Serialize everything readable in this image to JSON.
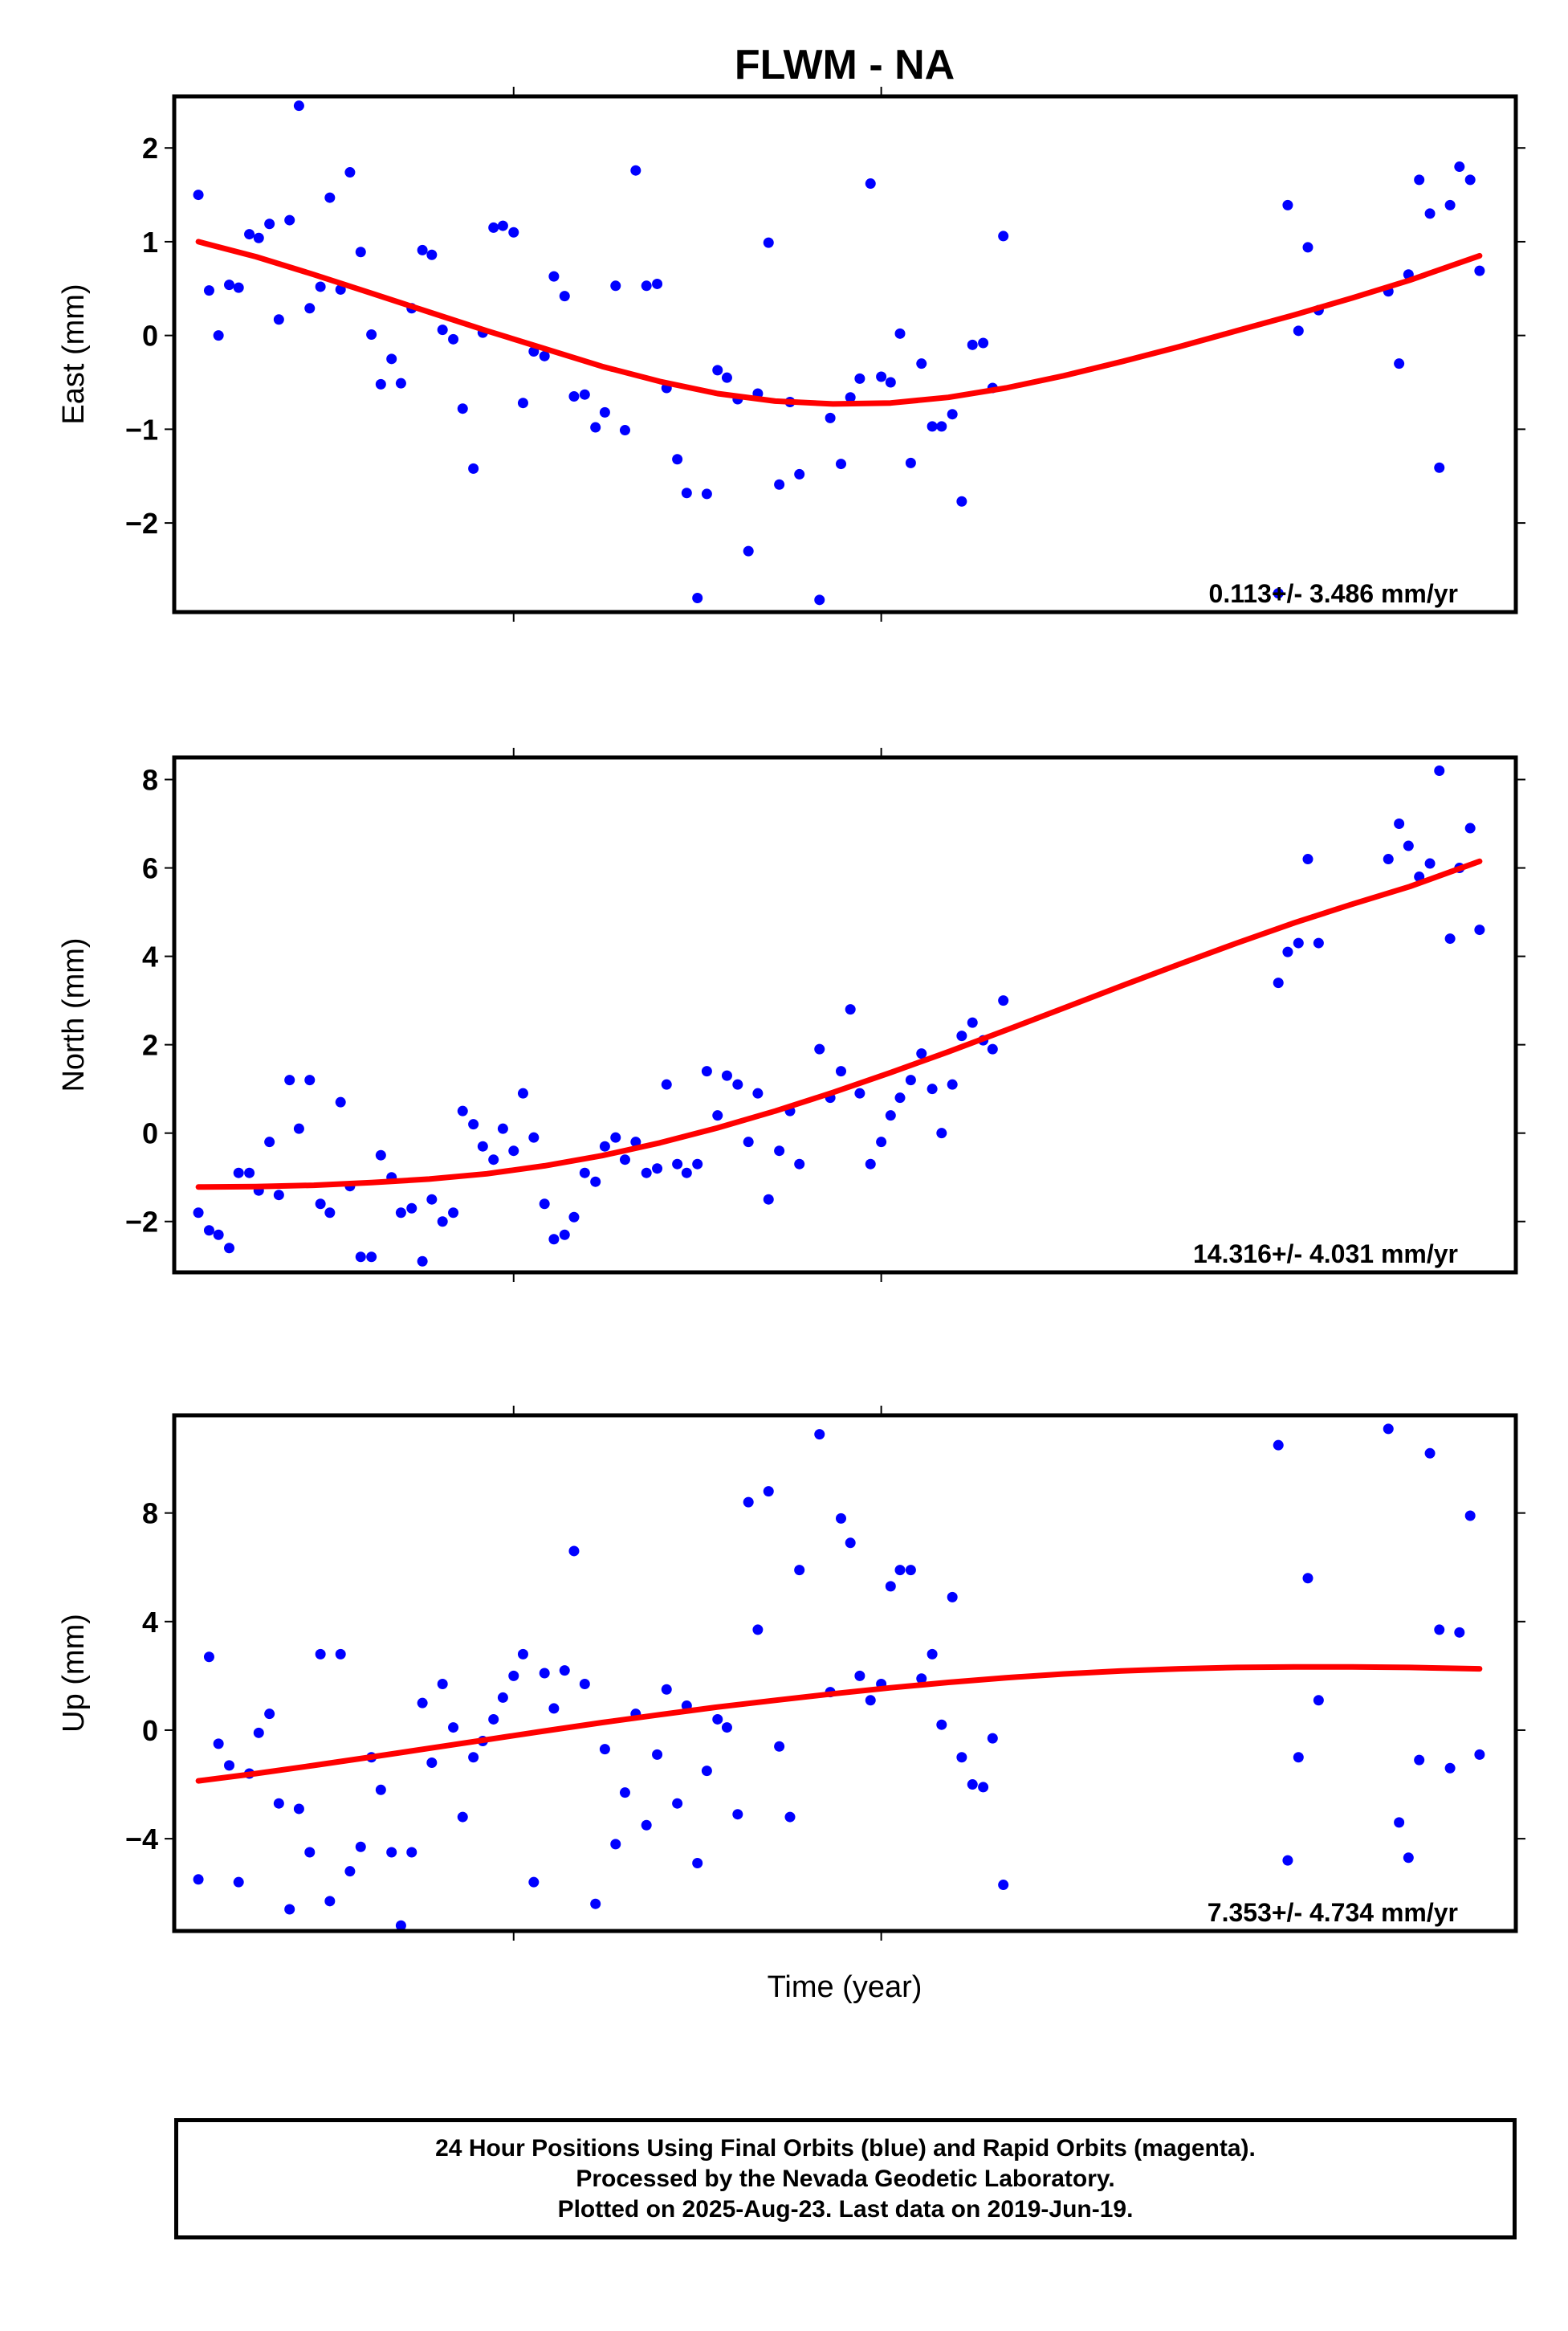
{
  "title": "FLWM - NA",
  "xlabel": "Time (year)",
  "colors": {
    "points": "#0000ff",
    "fit": "#ff0000",
    "frame": "#000000"
  },
  "footer": {
    "line1": "24 Hour Positions Using Final Orbits (blue) and Rapid Orbits (magenta).",
    "line2": "Processed by the Nevada Geodetic Laboratory.",
    "line3": "Plotted on 2025-Aug-23. Last data on 2019-Jun-19."
  },
  "chart_data": [
    {
      "type": "scatter",
      "ylabel": "East (mm)",
      "rate": "0.113+/- 3.486 mm/yr",
      "ylim": [
        -2.95,
        2.55
      ],
      "yticks": [
        2,
        1,
        0,
        -1,
        -2
      ],
      "ytick_labels": [
        "2",
        "1",
        "0",
        "−1",
        "−2"
      ],
      "xlim": [
        0,
        1
      ],
      "points": [
        [
          0.018,
          1.5
        ],
        [
          0.026,
          0.48
        ],
        [
          0.033,
          0.0
        ],
        [
          0.041,
          0.54
        ],
        [
          0.048,
          0.51
        ],
        [
          0.056,
          1.08
        ],
        [
          0.063,
          1.04
        ],
        [
          0.071,
          1.19
        ],
        [
          0.078,
          0.17
        ],
        [
          0.086,
          1.23
        ],
        [
          0.093,
          2.45
        ],
        [
          0.101,
          0.29
        ],
        [
          0.109,
          0.52
        ],
        [
          0.116,
          1.47
        ],
        [
          0.124,
          0.49
        ],
        [
          0.131,
          1.74
        ],
        [
          0.139,
          0.89
        ],
        [
          0.147,
          0.01
        ],
        [
          0.154,
          -0.52
        ],
        [
          0.162,
          -0.25
        ],
        [
          0.169,
          -0.51
        ],
        [
          0.177,
          0.29
        ],
        [
          0.185,
          0.91
        ],
        [
          0.192,
          0.86
        ],
        [
          0.2,
          0.06
        ],
        [
          0.208,
          -0.04
        ],
        [
          0.215,
          -0.78
        ],
        [
          0.223,
          -1.42
        ],
        [
          0.23,
          0.03
        ],
        [
          0.238,
          1.15
        ],
        [
          0.245,
          1.17
        ],
        [
          0.253,
          1.1
        ],
        [
          0.26,
          -0.72
        ],
        [
          0.268,
          -0.17
        ],
        [
          0.276,
          -0.22
        ],
        [
          0.283,
          0.63
        ],
        [
          0.291,
          0.42
        ],
        [
          0.298,
          -0.65
        ],
        [
          0.306,
          -0.63
        ],
        [
          0.314,
          -0.98
        ],
        [
          0.321,
          -0.82
        ],
        [
          0.329,
          0.53
        ],
        [
          0.336,
          -1.01
        ],
        [
          0.344,
          1.76
        ],
        [
          0.352,
          0.53
        ],
        [
          0.36,
          0.55
        ],
        [
          0.367,
          -0.56
        ],
        [
          0.375,
          -1.32
        ],
        [
          0.382,
          -1.68
        ],
        [
          0.39,
          -2.8
        ],
        [
          0.397,
          -1.69
        ],
        [
          0.405,
          -0.37
        ],
        [
          0.412,
          -0.45
        ],
        [
          0.42,
          -0.68
        ],
        [
          0.428,
          -2.3
        ],
        [
          0.435,
          -0.62
        ],
        [
          0.443,
          0.99
        ],
        [
          0.451,
          -1.59
        ],
        [
          0.459,
          -0.71
        ],
        [
          0.466,
          -1.48
        ],
        [
          0.481,
          -2.82
        ],
        [
          0.489,
          -0.88
        ],
        [
          0.497,
          -1.37
        ],
        [
          0.504,
          -0.66
        ],
        [
          0.511,
          -0.46
        ],
        [
          0.519,
          1.62
        ],
        [
          0.527,
          -0.44
        ],
        [
          0.534,
          -0.5
        ],
        [
          0.541,
          0.02
        ],
        [
          0.549,
          -1.36
        ],
        [
          0.557,
          -0.3
        ],
        [
          0.565,
          -0.97
        ],
        [
          0.572,
          -0.97
        ],
        [
          0.58,
          -0.84
        ],
        [
          0.587,
          -1.77
        ],
        [
          0.595,
          -0.1
        ],
        [
          0.603,
          -0.08
        ],
        [
          0.61,
          -0.56
        ],
        [
          0.618,
          1.06
        ],
        [
          0.823,
          -2.75
        ],
        [
          0.83,
          1.39
        ],
        [
          0.838,
          0.05
        ],
        [
          0.845,
          0.94
        ],
        [
          0.853,
          0.27
        ],
        [
          0.905,
          0.47
        ],
        [
          0.913,
          -0.3
        ],
        [
          0.92,
          0.65
        ],
        [
          0.928,
          1.66
        ],
        [
          0.936,
          1.3
        ],
        [
          0.943,
          -1.41
        ],
        [
          0.951,
          1.39
        ],
        [
          0.958,
          1.8
        ],
        [
          0.966,
          1.66
        ],
        [
          0.973,
          0.69
        ]
      ],
      "fit_x": [
        0.018,
        0.061,
        0.104,
        0.147,
        0.19,
        0.233,
        0.276,
        0.319,
        0.362,
        0.405,
        0.448,
        0.491,
        0.534,
        0.577,
        0.62,
        0.663,
        0.706,
        0.749,
        0.792,
        0.835,
        0.878,
        0.921,
        0.973
      ],
      "fit_y": [
        1.0,
        0.84,
        0.65,
        0.45,
        0.25,
        0.05,
        -0.14,
        -0.33,
        -0.49,
        -0.62,
        -0.7,
        -0.73,
        -0.72,
        -0.66,
        -0.56,
        -0.43,
        -0.28,
        -0.12,
        0.05,
        0.22,
        0.4,
        0.59,
        0.85
      ]
    },
    {
      "type": "scatter",
      "ylabel": "North (mm)",
      "rate": "14.316+/- 4.031 mm/yr",
      "ylim": [
        -3.15,
        8.5
      ],
      "yticks": [
        8,
        6,
        4,
        2,
        0,
        -2
      ],
      "ytick_labels": [
        "8",
        "6",
        "4",
        "2",
        "0",
        "−2"
      ],
      "xlim": [
        0,
        1
      ],
      "points": [
        [
          0.018,
          -1.8
        ],
        [
          0.026,
          -2.2
        ],
        [
          0.033,
          -2.3
        ],
        [
          0.041,
          -2.6
        ],
        [
          0.048,
          -0.9
        ],
        [
          0.056,
          -0.9
        ],
        [
          0.063,
          -1.3
        ],
        [
          0.071,
          -0.2
        ],
        [
          0.078,
          -1.4
        ],
        [
          0.086,
          1.2
        ],
        [
          0.093,
          0.1
        ],
        [
          0.101,
          1.2
        ],
        [
          0.109,
          -1.6
        ],
        [
          0.116,
          -1.8
        ],
        [
          0.124,
          0.7
        ],
        [
          0.131,
          -1.2
        ],
        [
          0.139,
          -2.8
        ],
        [
          0.147,
          -2.8
        ],
        [
          0.154,
          -0.5
        ],
        [
          0.162,
          -1.0
        ],
        [
          0.169,
          -1.8
        ],
        [
          0.177,
          -1.7
        ],
        [
          0.185,
          -2.9
        ],
        [
          0.192,
          -1.5
        ],
        [
          0.2,
          -2.0
        ],
        [
          0.208,
          -1.8
        ],
        [
          0.215,
          0.5
        ],
        [
          0.223,
          0.2
        ],
        [
          0.23,
          -0.3
        ],
        [
          0.238,
          -0.6
        ],
        [
          0.245,
          0.1
        ],
        [
          0.253,
          -0.4
        ],
        [
          0.26,
          0.9
        ],
        [
          0.268,
          -0.1
        ],
        [
          0.276,
          -1.6
        ],
        [
          0.283,
          -2.4
        ],
        [
          0.291,
          -2.3
        ],
        [
          0.298,
          -1.9
        ],
        [
          0.306,
          -0.9
        ],
        [
          0.314,
          -1.1
        ],
        [
          0.321,
          -0.3
        ],
        [
          0.329,
          -0.1
        ],
        [
          0.336,
          -0.6
        ],
        [
          0.344,
          -0.2
        ],
        [
          0.352,
          -0.9
        ],
        [
          0.36,
          -0.8
        ],
        [
          0.367,
          1.1
        ],
        [
          0.375,
          -0.7
        ],
        [
          0.382,
          -0.9
        ],
        [
          0.39,
          -0.7
        ],
        [
          0.397,
          1.4
        ],
        [
          0.405,
          0.4
        ],
        [
          0.412,
          1.3
        ],
        [
          0.42,
          1.1
        ],
        [
          0.428,
          -0.2
        ],
        [
          0.435,
          0.9
        ],
        [
          0.443,
          -1.5
        ],
        [
          0.451,
          -0.4
        ],
        [
          0.459,
          0.5
        ],
        [
          0.466,
          -0.7
        ],
        [
          0.481,
          1.9
        ],
        [
          0.489,
          0.8
        ],
        [
          0.497,
          1.4
        ],
        [
          0.504,
          2.8
        ],
        [
          0.511,
          0.9
        ],
        [
          0.519,
          -0.7
        ],
        [
          0.527,
          -0.2
        ],
        [
          0.534,
          0.4
        ],
        [
          0.541,
          0.8
        ],
        [
          0.549,
          1.2
        ],
        [
          0.557,
          1.8
        ],
        [
          0.565,
          1.0
        ],
        [
          0.572,
          0.0
        ],
        [
          0.58,
          1.1
        ],
        [
          0.587,
          2.2
        ],
        [
          0.595,
          2.5
        ],
        [
          0.603,
          2.1
        ],
        [
          0.61,
          1.9
        ],
        [
          0.618,
          3.0
        ],
        [
          0.823,
          3.4
        ],
        [
          0.83,
          4.1
        ],
        [
          0.838,
          4.3
        ],
        [
          0.845,
          6.2
        ],
        [
          0.853,
          4.3
        ],
        [
          0.905,
          6.2
        ],
        [
          0.913,
          7.0
        ],
        [
          0.92,
          6.5
        ],
        [
          0.928,
          5.8
        ],
        [
          0.936,
          6.1
        ],
        [
          0.943,
          8.2
        ],
        [
          0.951,
          4.4
        ],
        [
          0.958,
          6.0
        ],
        [
          0.966,
          6.9
        ],
        [
          0.973,
          4.6
        ]
      ],
      "fit_x": [
        0.018,
        0.061,
        0.104,
        0.147,
        0.19,
        0.233,
        0.276,
        0.319,
        0.362,
        0.405,
        0.448,
        0.491,
        0.534,
        0.577,
        0.62,
        0.663,
        0.706,
        0.749,
        0.792,
        0.835,
        0.878,
        0.921,
        0.973
      ],
      "fit_y": [
        -1.22,
        -1.21,
        -1.18,
        -1.12,
        -1.04,
        -0.92,
        -0.74,
        -0.51,
        -0.22,
        0.12,
        0.5,
        0.92,
        1.37,
        1.84,
        2.33,
        2.83,
        3.33,
        3.82,
        4.3,
        4.76,
        5.18,
        5.58,
        6.15
      ]
    },
    {
      "type": "scatter",
      "ylabel": "Up (mm)",
      "rate": "7.353+/- 4.734 mm/yr",
      "ylim": [
        -7.4,
        11.6
      ],
      "yticks": [
        8,
        4,
        0,
        -4
      ],
      "ytick_labels": [
        "8",
        "4",
        "0",
        "−4"
      ],
      "xlim": [
        0,
        1
      ],
      "points": [
        [
          0.018,
          -5.5
        ],
        [
          0.026,
          2.7
        ],
        [
          0.033,
          -0.5
        ],
        [
          0.041,
          -1.3
        ],
        [
          0.048,
          -5.6
        ],
        [
          0.056,
          -1.6
        ],
        [
          0.063,
          -0.1
        ],
        [
          0.071,
          0.6
        ],
        [
          0.078,
          -2.7
        ],
        [
          0.086,
          -6.6
        ],
        [
          0.093,
          -2.9
        ],
        [
          0.101,
          -4.5
        ],
        [
          0.109,
          2.8
        ],
        [
          0.116,
          -6.3
        ],
        [
          0.124,
          2.8
        ],
        [
          0.131,
          -5.2
        ],
        [
          0.139,
          -4.3
        ],
        [
          0.147,
          -1.0
        ],
        [
          0.154,
          -2.2
        ],
        [
          0.162,
          -4.5
        ],
        [
          0.169,
          -7.2
        ],
        [
          0.177,
          -4.5
        ],
        [
          0.185,
          1.0
        ],
        [
          0.192,
          -1.2
        ],
        [
          0.2,
          1.7
        ],
        [
          0.208,
          0.1
        ],
        [
          0.215,
          -3.2
        ],
        [
          0.223,
          -1.0
        ],
        [
          0.23,
          -0.4
        ],
        [
          0.238,
          0.4
        ],
        [
          0.245,
          1.2
        ],
        [
          0.253,
          2.0
        ],
        [
          0.26,
          2.8
        ],
        [
          0.268,
          -5.6
        ],
        [
          0.276,
          2.1
        ],
        [
          0.283,
          0.8
        ],
        [
          0.291,
          2.2
        ],
        [
          0.298,
          6.6
        ],
        [
          0.306,
          1.7
        ],
        [
          0.314,
          -6.4
        ],
        [
          0.321,
          -0.7
        ],
        [
          0.329,
          -4.2
        ],
        [
          0.336,
          -2.3
        ],
        [
          0.344,
          0.6
        ],
        [
          0.352,
          -3.5
        ],
        [
          0.36,
          -0.9
        ],
        [
          0.367,
          1.5
        ],
        [
          0.375,
          -2.7
        ],
        [
          0.382,
          0.9
        ],
        [
          0.39,
          -4.9
        ],
        [
          0.397,
          -1.5
        ],
        [
          0.405,
          0.4
        ],
        [
          0.412,
          0.1
        ],
        [
          0.42,
          -3.1
        ],
        [
          0.428,
          8.4
        ],
        [
          0.435,
          3.7
        ],
        [
          0.443,
          8.8
        ],
        [
          0.451,
          -0.6
        ],
        [
          0.459,
          -3.2
        ],
        [
          0.466,
          5.9
        ],
        [
          0.481,
          10.9
        ],
        [
          0.489,
          1.4
        ],
        [
          0.497,
          7.8
        ],
        [
          0.504,
          6.9
        ],
        [
          0.511,
          2.0
        ],
        [
          0.519,
          1.1
        ],
        [
          0.527,
          1.7
        ],
        [
          0.534,
          5.3
        ],
        [
          0.541,
          5.9
        ],
        [
          0.549,
          5.9
        ],
        [
          0.557,
          1.9
        ],
        [
          0.565,
          2.8
        ],
        [
          0.572,
          0.2
        ],
        [
          0.58,
          4.9
        ],
        [
          0.587,
          -1.0
        ],
        [
          0.595,
          -2.0
        ],
        [
          0.603,
          -2.1
        ],
        [
          0.61,
          -0.3
        ],
        [
          0.618,
          -5.7
        ],
        [
          0.823,
          10.5
        ],
        [
          0.83,
          -4.8
        ],
        [
          0.838,
          -1.0
        ],
        [
          0.845,
          5.6
        ],
        [
          0.853,
          1.1
        ],
        [
          0.905,
          11.1
        ],
        [
          0.913,
          -3.4
        ],
        [
          0.92,
          -4.7
        ],
        [
          0.928,
          -1.1
        ],
        [
          0.936,
          10.2
        ],
        [
          0.943,
          3.7
        ],
        [
          0.951,
          -1.4
        ],
        [
          0.958,
          3.6
        ],
        [
          0.966,
          7.9
        ],
        [
          0.973,
          -0.9
        ]
      ],
      "fit_x": [
        0.018,
        0.061,
        0.104,
        0.147,
        0.19,
        0.233,
        0.276,
        0.319,
        0.362,
        0.405,
        0.448,
        0.491,
        0.534,
        0.577,
        0.62,
        0.663,
        0.706,
        0.749,
        0.792,
        0.835,
        0.878,
        0.921,
        0.973
      ],
      "fit_y": [
        -1.87,
        -1.6,
        -1.3,
        -0.99,
        -0.67,
        -0.35,
        -0.03,
        0.28,
        0.57,
        0.85,
        1.1,
        1.34,
        1.56,
        1.76,
        1.93,
        2.07,
        2.18,
        2.26,
        2.31,
        2.33,
        2.33,
        2.31,
        2.26
      ]
    }
  ]
}
